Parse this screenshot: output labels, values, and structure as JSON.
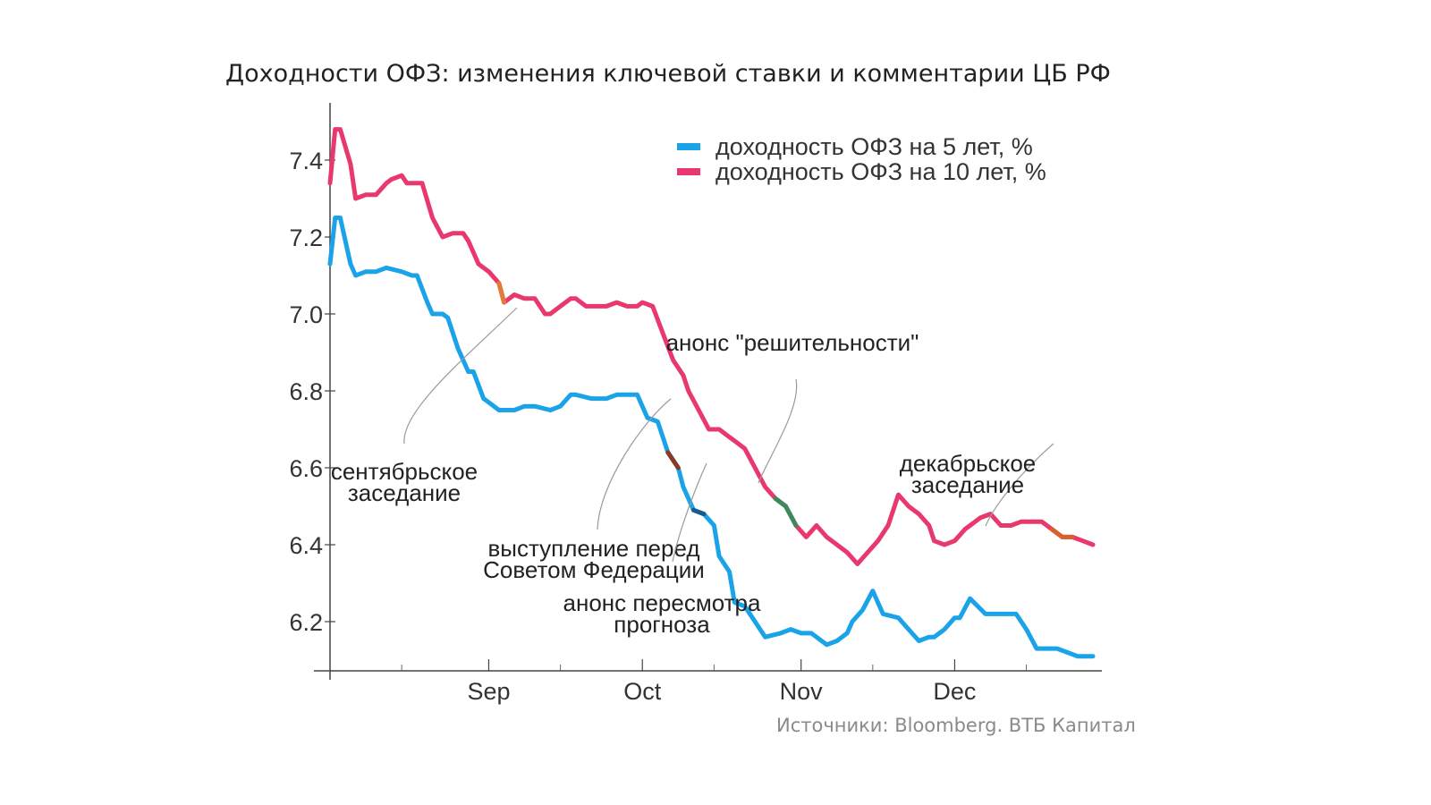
{
  "chart_data": {
    "type": "line",
    "title": "Доходности ОФЗ: изменения ключевой ставки и комментарии ЦБ РФ",
    "source": "Источники: Bloomberg. ВТБ Капитал",
    "xlabel": "",
    "ylabel": "",
    "x_domain": [
      "2017-08-01",
      "2017-12-28"
    ],
    "ylim": [
      6.08,
      7.53
    ],
    "x_ticks": [
      {
        "date": "2017-09-01",
        "label": "Sep"
      },
      {
        "date": "2017-10-01",
        "label": "Oct"
      },
      {
        "date": "2017-11-01",
        "label": "Nov"
      },
      {
        "date": "2017-12-01",
        "label": "Dec"
      }
    ],
    "y_ticks": [
      {
        "value": 6.2,
        "label": "6.2"
      },
      {
        "value": 6.4,
        "label": "6.4"
      },
      {
        "value": 6.6,
        "label": "6.6"
      },
      {
        "value": 6.8,
        "label": "6.8"
      },
      {
        "value": 7.0,
        "label": "7.0"
      },
      {
        "value": 7.2,
        "label": "7.2"
      },
      {
        "value": 7.4,
        "label": "7.4"
      }
    ],
    "legend_position": "top-right",
    "series": [
      {
        "name": "доходность ОФЗ на 5 лет, %",
        "color": "#1aa3e8",
        "x": [
          "2017-08-01",
          "2017-08-02",
          "2017-08-03",
          "2017-08-05",
          "2017-08-06",
          "2017-08-08",
          "2017-08-10",
          "2017-08-12",
          "2017-08-15",
          "2017-08-17",
          "2017-08-18",
          "2017-08-20",
          "2017-08-21",
          "2017-08-23",
          "2017-08-24",
          "2017-08-26",
          "2017-08-28",
          "2017-08-29",
          "2017-08-31",
          "2017-09-01",
          "2017-09-03",
          "2017-09-04",
          "2017-09-06",
          "2017-09-08",
          "2017-09-10",
          "2017-09-13",
          "2017-09-15",
          "2017-09-17",
          "2017-09-18",
          "2017-09-21",
          "2017-09-22",
          "2017-09-24",
          "2017-09-26",
          "2017-09-28",
          "2017-09-30",
          "2017-10-02",
          "2017-10-04",
          "2017-10-06",
          "2017-10-08",
          "2017-10-09",
          "2017-10-11",
          "2017-10-13",
          "2017-10-15",
          "2017-10-16",
          "2017-10-18",
          "2017-10-19",
          "2017-10-21",
          "2017-10-23",
          "2017-10-25",
          "2017-10-28",
          "2017-10-30",
          "2017-11-01",
          "2017-11-03",
          "2017-11-05",
          "2017-11-06",
          "2017-11-08",
          "2017-11-10",
          "2017-11-11",
          "2017-11-13",
          "2017-11-15",
          "2017-11-17",
          "2017-11-20",
          "2017-11-22",
          "2017-11-24",
          "2017-11-26",
          "2017-11-27",
          "2017-11-29",
          "2017-12-01",
          "2017-12-02",
          "2017-12-04",
          "2017-12-07",
          "2017-12-09",
          "2017-12-11",
          "2017-12-13",
          "2017-12-15",
          "2017-12-17",
          "2017-12-19",
          "2017-12-21",
          "2017-12-23",
          "2017-12-25",
          "2017-12-28"
        ],
        "values": [
          7.13,
          7.25,
          7.25,
          7.13,
          7.1,
          7.11,
          7.11,
          7.12,
          7.11,
          7.1,
          7.1,
          7.03,
          7.0,
          7.0,
          6.99,
          6.91,
          6.85,
          6.85,
          6.78,
          6.77,
          6.75,
          6.75,
          6.75,
          6.76,
          6.76,
          6.75,
          6.76,
          6.79,
          6.79,
          6.78,
          6.78,
          6.78,
          6.79,
          6.79,
          6.79,
          6.73,
          6.72,
          6.64,
          6.6,
          6.55,
          6.49,
          6.48,
          6.45,
          6.37,
          6.33,
          6.25,
          6.24,
          6.2,
          6.16,
          6.17,
          6.18,
          6.17,
          6.17,
          6.15,
          6.14,
          6.15,
          6.17,
          6.2,
          6.23,
          6.28,
          6.22,
          6.21,
          6.18,
          6.15,
          6.16,
          6.16,
          6.18,
          6.21,
          6.21,
          6.26,
          6.22,
          6.22,
          6.22,
          6.22,
          6.18,
          6.13,
          6.13,
          6.13,
          6.12,
          6.11,
          6.11
        ]
      },
      {
        "name": "доходность ОФЗ на 10 лет, %",
        "color": "#e9386e",
        "x": [
          "2017-08-01",
          "2017-08-02",
          "2017-08-03",
          "2017-08-05",
          "2017-08-06",
          "2017-08-08",
          "2017-08-10",
          "2017-08-12",
          "2017-08-13",
          "2017-08-15",
          "2017-08-16",
          "2017-08-18",
          "2017-08-19",
          "2017-08-21",
          "2017-08-23",
          "2017-08-25",
          "2017-08-27",
          "2017-08-28",
          "2017-08-30",
          "2017-09-01",
          "2017-09-03",
          "2017-09-04",
          "2017-09-06",
          "2017-09-08",
          "2017-09-10",
          "2017-09-12",
          "2017-09-13",
          "2017-09-15",
          "2017-09-17",
          "2017-09-18",
          "2017-09-20",
          "2017-09-22",
          "2017-09-24",
          "2017-09-26",
          "2017-09-28",
          "2017-09-30",
          "2017-10-01",
          "2017-10-03",
          "2017-10-05",
          "2017-10-07",
          "2017-10-09",
          "2017-10-10",
          "2017-10-12",
          "2017-10-14",
          "2017-10-16",
          "2017-10-18",
          "2017-10-19",
          "2017-10-21",
          "2017-10-23",
          "2017-10-25",
          "2017-10-27",
          "2017-10-29",
          "2017-10-31",
          "2017-11-02",
          "2017-11-04",
          "2017-11-06",
          "2017-11-08",
          "2017-11-10",
          "2017-11-12",
          "2017-11-14",
          "2017-11-16",
          "2017-11-18",
          "2017-11-20",
          "2017-11-22",
          "2017-11-24",
          "2017-11-26",
          "2017-11-27",
          "2017-11-29",
          "2017-12-01",
          "2017-12-03",
          "2017-12-04",
          "2017-12-06",
          "2017-12-08",
          "2017-12-10",
          "2017-12-12",
          "2017-12-14",
          "2017-12-16",
          "2017-12-18",
          "2017-12-20",
          "2017-12-22",
          "2017-12-24",
          "2017-12-26",
          "2017-12-28"
        ],
        "values": [
          7.34,
          7.48,
          7.48,
          7.39,
          7.3,
          7.31,
          7.31,
          7.34,
          7.35,
          7.36,
          7.34,
          7.34,
          7.34,
          7.25,
          7.2,
          7.21,
          7.21,
          7.19,
          7.13,
          7.11,
          7.08,
          7.03,
          7.05,
          7.04,
          7.04,
          7.0,
          7.0,
          7.02,
          7.04,
          7.04,
          7.02,
          7.02,
          7.02,
          7.03,
          7.02,
          7.02,
          7.03,
          7.02,
          6.95,
          6.88,
          6.84,
          6.8,
          6.75,
          6.7,
          6.7,
          6.68,
          6.67,
          6.65,
          6.6,
          6.55,
          6.52,
          6.5,
          6.45,
          6.42,
          6.45,
          6.42,
          6.4,
          6.38,
          6.35,
          6.38,
          6.41,
          6.45,
          6.53,
          6.5,
          6.48,
          6.45,
          6.41,
          6.4,
          6.41,
          6.44,
          6.45,
          6.47,
          6.48,
          6.45,
          6.45,
          6.46,
          6.46,
          6.46,
          6.44,
          6.42,
          6.42,
          6.41,
          6.4
        ]
      }
    ],
    "highlight_segments": [
      {
        "series": 1,
        "from": "2017-09-03",
        "to": "2017-09-04",
        "color": "#e07b39"
      },
      {
        "series": 0,
        "from": "2017-10-06",
        "to": "2017-10-08",
        "color": "#8a3a2a"
      },
      {
        "series": 0,
        "from": "2017-10-11",
        "to": "2017-10-13",
        "color": "#1a5a8a"
      },
      {
        "series": 1,
        "from": "2017-10-27",
        "to": "2017-10-31",
        "color": "#3a8a5a"
      },
      {
        "series": 1,
        "from": "2017-12-20",
        "to": "2017-12-24",
        "color": "#d8602a"
      }
    ],
    "annotations": [
      {
        "lines": [
          "сентябрьское",
          "заседание"
        ]
      },
      {
        "lines": [
          "выступление перед",
          "Советом Федерации"
        ]
      },
      {
        "lines": [
          "анонс пересмотра",
          "прогноза"
        ]
      },
      {
        "lines": [
          "анонс \"решительности\""
        ]
      },
      {
        "lines": [
          "декабрьское",
          "заседание"
        ]
      }
    ],
    "grid": false
  }
}
